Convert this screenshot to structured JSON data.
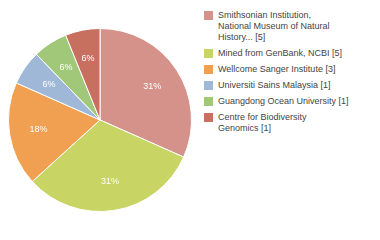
{
  "chart_data": {
    "type": "pie",
    "categories": [
      "Smithsonian Institution,\nNational Museum of Natural\nHistory... [5]",
      "Mined from GenBank, NCBI [5]",
      "Wellcome Sanger Institute [3]",
      "Universiti Sains Malaysia [1]",
      "Guangdong Ocean University [1]",
      "Centre for Biodiversity\nGenomics [1]"
    ],
    "values": [
      31,
      31,
      18,
      6,
      6,
      6
    ],
    "value_labels": [
      "31%",
      "31%",
      "18%",
      "6%",
      "6%",
      "6%"
    ],
    "colors": [
      "#d4928a",
      "#c8d464",
      "#f0a050",
      "#a0b8d8",
      "#a0c878",
      "#c87060"
    ],
    "data_labels": true,
    "legend": "right"
  }
}
